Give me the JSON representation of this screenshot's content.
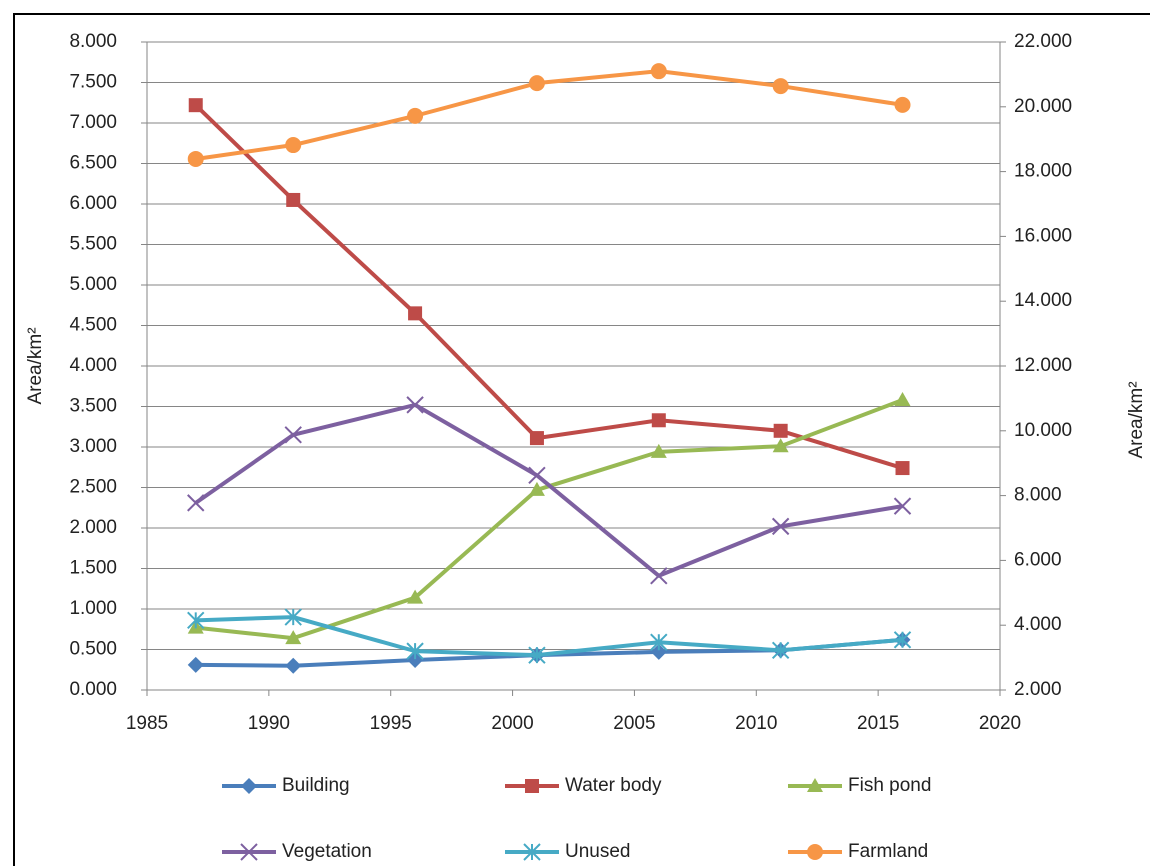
{
  "chart_data": {
    "type": "line",
    "x_categories_note_free": null,
    "y_label": "Area/km²",
    "y2_label": "Area/km²",
    "xlim": [
      1985,
      2020
    ],
    "xticks": [
      1985,
      1990,
      1995,
      2000,
      2005,
      2010,
      2015,
      2020
    ],
    "ylim": [
      0,
      8
    ],
    "yticks": [
      {
        "value": 0,
        "label": "0.000"
      },
      {
        "value": 0.5,
        "label": "0.500"
      },
      {
        "value": 1,
        "label": "1.000"
      },
      {
        "value": 1.5,
        "label": "1.500"
      },
      {
        "value": 2,
        "label": "2.000"
      },
      {
        "value": 2.5,
        "label": "2.500"
      },
      {
        "value": 3,
        "label": "3.000"
      },
      {
        "value": 3.5,
        "label": "3.500"
      },
      {
        "value": 4,
        "label": "4.000"
      },
      {
        "value": 4.5,
        "label": "4.500"
      },
      {
        "value": 5,
        "label": "5.000"
      },
      {
        "value": 5.5,
        "label": "5.500"
      },
      {
        "value": 6,
        "label": "6.000"
      },
      {
        "value": 6.5,
        "label": "6.500"
      },
      {
        "value": 7,
        "label": "7.000"
      },
      {
        "value": 7.5,
        "label": "7.500"
      },
      {
        "value": 8,
        "label": "8.000"
      }
    ],
    "y2lim": [
      2,
      22
    ],
    "y2ticks": [
      {
        "value": 2,
        "label": "2.000"
      },
      {
        "value": 4,
        "label": "4.000"
      },
      {
        "value": 6,
        "label": "6.000"
      },
      {
        "value": 8,
        "label": "8.000"
      },
      {
        "value": 10,
        "label": "10.000"
      },
      {
        "value": 12,
        "label": "12.000"
      },
      {
        "value": 14,
        "label": "14.000"
      },
      {
        "value": 16,
        "label": "16.000"
      },
      {
        "value": 18,
        "label": "18.000"
      },
      {
        "value": 20,
        "label": "20.000"
      },
      {
        "value": 22,
        "label": "22.000"
      }
    ],
    "grid": true,
    "legend": "bottom",
    "x": [
      1987,
      1991,
      1996,
      2001,
      2006,
      2011,
      2016
    ],
    "series": [
      {
        "name": "Building",
        "color": "#4a7ebb",
        "marker": "diamond",
        "values": [
          0.31,
          0.3,
          0.37,
          0.43,
          0.47,
          0.49,
          0.62
        ]
      },
      {
        "name": "Water body",
        "color": "#be4b48",
        "marker": "square",
        "values": [
          7.22,
          6.05,
          4.65,
          3.11,
          3.33,
          3.2,
          2.74
        ]
      },
      {
        "name": "Fish pond",
        "color": "#98b954",
        "marker": "triangle",
        "values": [
          0.77,
          0.64,
          1.14,
          2.47,
          2.94,
          3.01,
          3.58
        ]
      },
      {
        "name": "Vegetation",
        "color": "#7d60a0",
        "marker": "x",
        "values": [
          2.31,
          3.15,
          3.52,
          2.65,
          1.41,
          2.02,
          2.27
        ]
      },
      {
        "name": "Unused",
        "color": "#46aac5",
        "marker": "star",
        "values": [
          0.86,
          0.9,
          0.48,
          0.43,
          0.59,
          0.49,
          0.62
        ]
      },
      {
        "name": "Farmland",
        "color": "#f79646",
        "marker": "circle",
        "axis": "y2",
        "values": [
          18.39,
          18.82,
          19.72,
          20.73,
          21.1,
          20.64,
          20.06
        ]
      }
    ]
  }
}
